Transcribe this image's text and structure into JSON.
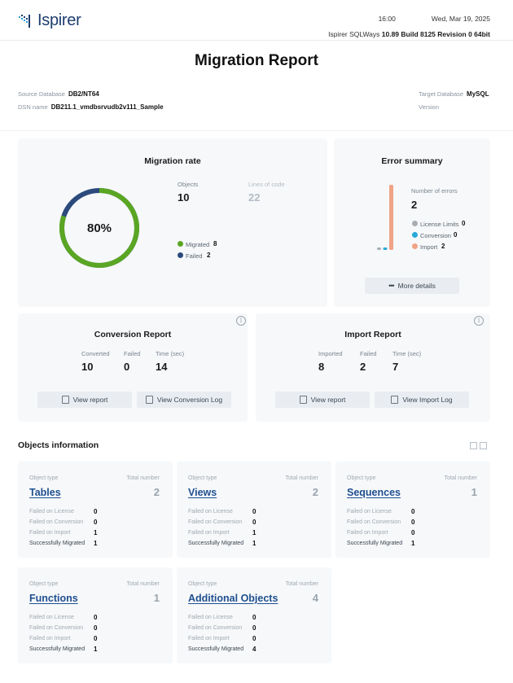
{
  "brand": {
    "logo_text": "Ispirer"
  },
  "header": {
    "time": "16:00",
    "date": "Wed, Mar 19, 2025",
    "product_label": "Ispirer SQLWays",
    "version": "10.89 Build 8125 Revision 0 64bit"
  },
  "title": "Migration Report",
  "source": {
    "db_label": "Source Database",
    "db_value": "DB2/NT64",
    "dsn_label": "DSN name",
    "dsn_value": "DB211.1_vmdbsrvudb2v111_Sample"
  },
  "target": {
    "db_label": "Target Database",
    "db_value": "MySQL",
    "version_label": "Version",
    "version_value": ""
  },
  "migration_rate": {
    "title": "Migration rate",
    "percent_label": "80%",
    "percent": 80,
    "objects_label": "Objects",
    "objects_value": "10",
    "lines_label": "Lines of code",
    "lines_value": "22",
    "migrated_label": "Migrated",
    "migrated_value": "8",
    "failed_label": "Failed",
    "failed_value": "2",
    "colors": {
      "migrated": "#5aa623",
      "failed": "#2c4a7c"
    }
  },
  "error_summary": {
    "title": "Error summary",
    "count_label": "Number of errors",
    "count_value": "2",
    "items": [
      {
        "label": "License Limits",
        "value": "0",
        "color": "#a8adb2",
        "bar": 0
      },
      {
        "label": "Conversion",
        "value": "0",
        "color": "#29a9d8",
        "bar": 0
      },
      {
        "label": "Import",
        "value": "2",
        "color": "#f0a386",
        "bar": 2
      }
    ],
    "more_label": "More details"
  },
  "conversion_report": {
    "title": "Conversion Report",
    "converted_label": "Converted",
    "converted_value": "10",
    "failed_label": "Failed",
    "failed_value": "0",
    "time_label": "Time (sec)",
    "time_value": "14",
    "view_report_label": "View report",
    "view_log_label": "View Conversion Log"
  },
  "import_report": {
    "title": "Import Report",
    "imported_label": "Imported",
    "imported_value": "8",
    "failed_label": "Failed",
    "failed_value": "2",
    "time_label": "Time (sec)",
    "time_value": "7",
    "view_report_label": "View report",
    "view_log_label": "View Import Log"
  },
  "objects_info": {
    "title": "Objects information",
    "object_type_label": "Object type",
    "total_label": "Total number",
    "row_labels": [
      "Failed on License",
      "Failed on Conversion",
      "Failed on Import",
      "Successfully Migrated"
    ],
    "cards": [
      {
        "name": "Tables",
        "total": "2",
        "values": [
          "0",
          "0",
          "1",
          "1"
        ]
      },
      {
        "name": "Views",
        "total": "2",
        "values": [
          "0",
          "0",
          "1",
          "1"
        ]
      },
      {
        "name": "Sequences",
        "total": "1",
        "values": [
          "0",
          "0",
          "0",
          "1"
        ]
      },
      {
        "name": "Functions",
        "total": "1",
        "values": [
          "0",
          "0",
          "0",
          "1"
        ]
      },
      {
        "name": "Additional Objects",
        "total": "4",
        "values": [
          "0",
          "0",
          "0",
          "4"
        ]
      }
    ]
  }
}
